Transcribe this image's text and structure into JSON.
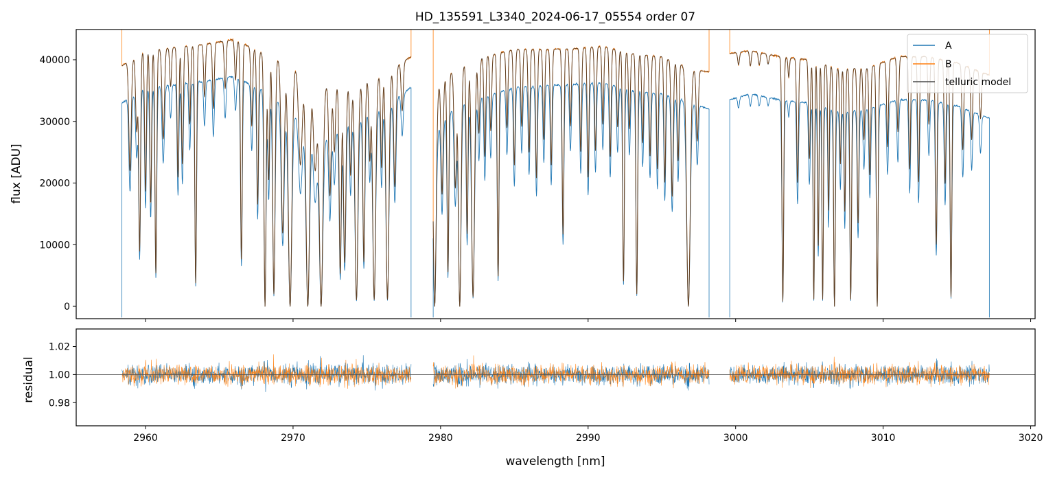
{
  "chart_data": [
    {
      "type": "line",
      "title": "HD_135591_L3340_2024-06-17_05554  order 07",
      "xlabel": "",
      "ylabel": "flux [ADU]",
      "xlim": [
        2955.3,
        3020.3
      ],
      "ylim": [
        -2000,
        44900
      ],
      "yticks": [
        0,
        10000,
        20000,
        30000,
        40000
      ],
      "ytick_labels": [
        "0",
        "10000",
        "20000",
        "30000",
        "40000"
      ],
      "xticks": [
        2960,
        2970,
        2980,
        2990,
        3000,
        3010,
        3020
      ],
      "show_xtick_labels": false,
      "grid": false,
      "legend": {
        "position": "top-right",
        "entries": [
          "A",
          "B",
          "telluric model"
        ]
      },
      "segments": [
        {
          "x0": 2958.4,
          "x1": 2978.0
        },
        {
          "x0": 2979.5,
          "x1": 2998.2
        },
        {
          "x0": 2999.6,
          "x1": 3017.2
        }
      ],
      "continuum_B": [
        [
          2958.4,
          39000
        ],
        [
          2960.0,
          41500
        ],
        [
          2962.0,
          42000
        ],
        [
          2964.0,
          42500
        ],
        [
          2966.0,
          43300
        ],
        [
          2968.0,
          41000
        ],
        [
          2970.0,
          39000
        ],
        [
          2972.0,
          36000
        ],
        [
          2974.0,
          35500
        ],
        [
          2976.0,
          37500
        ],
        [
          2978.0,
          40500
        ],
        [
          2979.5,
          35000
        ],
        [
          2981.0,
          38500
        ],
        [
          2983.0,
          40500
        ],
        [
          2985.0,
          41700
        ],
        [
          2987.0,
          41700
        ],
        [
          2989.0,
          41800
        ],
        [
          2991.0,
          42200
        ],
        [
          2993.0,
          41000
        ],
        [
          2995.0,
          40500
        ],
        [
          2997.0,
          38500
        ],
        [
          2998.2,
          38000
        ],
        [
          2999.6,
          41000
        ],
        [
          3001.0,
          41500
        ],
        [
          3003.0,
          40500
        ],
        [
          3005.0,
          40000
        ],
        [
          3007.0,
          38500
        ],
        [
          3009.0,
          38700
        ],
        [
          3011.0,
          40500
        ],
        [
          3013.0,
          40500
        ],
        [
          3015.0,
          39500
        ],
        [
          3017.2,
          37500
        ]
      ],
      "continuum_A": [
        [
          2958.4,
          33000
        ],
        [
          2960.0,
          35500
        ],
        [
          2962.0,
          36000
        ],
        [
          2964.0,
          36500
        ],
        [
          2966.0,
          37300
        ],
        [
          2968.0,
          35000
        ],
        [
          2970.0,
          31500
        ],
        [
          2972.0,
          27000
        ],
        [
          2974.0,
          30000
        ],
        [
          2976.0,
          32000
        ],
        [
          2978.0,
          35500
        ],
        [
          2979.5,
          28000
        ],
        [
          2981.0,
          32500
        ],
        [
          2983.0,
          34000
        ],
        [
          2985.0,
          35500
        ],
        [
          2987.0,
          35800
        ],
        [
          2989.0,
          36000
        ],
        [
          2991.0,
          36300
        ],
        [
          2993.0,
          35000
        ],
        [
          2995.0,
          34500
        ],
        [
          2997.0,
          33000
        ],
        [
          2998.2,
          32000
        ],
        [
          2999.6,
          33500
        ],
        [
          3001.0,
          34500
        ],
        [
          3003.0,
          33500
        ],
        [
          3005.0,
          33000
        ],
        [
          3007.0,
          31500
        ],
        [
          3009.0,
          32000
        ],
        [
          3011.0,
          33500
        ],
        [
          3013.0,
          33500
        ],
        [
          3015.0,
          32500
        ],
        [
          3017.2,
          30500
        ]
      ],
      "absorption_lines": [
        [
          2958.95,
          0.45,
          0.08
        ],
        [
          2959.4,
          0.3,
          0.07
        ],
        [
          2959.6,
          0.78,
          0.06
        ],
        [
          2960.0,
          0.55,
          0.06
        ],
        [
          2960.35,
          0.6,
          0.06
        ],
        [
          2960.7,
          0.87,
          0.06
        ],
        [
          2961.2,
          0.35,
          0.08
        ],
        [
          2961.7,
          0.15,
          0.06
        ],
        [
          2962.2,
          0.5,
          0.06
        ],
        [
          2962.5,
          0.45,
          0.06
        ],
        [
          2963.0,
          0.3,
          0.06
        ],
        [
          2963.4,
          0.91,
          0.06
        ],
        [
          2964.0,
          0.2,
          0.06
        ],
        [
          2964.6,
          0.25,
          0.06
        ],
        [
          2965.4,
          0.18,
          0.06
        ],
        [
          2966.1,
          0.15,
          0.06
        ],
        [
          2966.5,
          0.82,
          0.06
        ],
        [
          2967.2,
          0.3,
          0.06
        ],
        [
          2967.6,
          0.6,
          0.06
        ],
        [
          2968.1,
          1.0,
          0.07
        ],
        [
          2968.35,
          0.5,
          0.06
        ],
        [
          2968.7,
          0.95,
          0.08
        ],
        [
          2969.3,
          0.7,
          0.1
        ],
        [
          2969.8,
          1.0,
          0.12
        ],
        [
          2970.5,
          0.4,
          0.12
        ],
        [
          2971.0,
          1.0,
          0.12
        ],
        [
          2971.5,
          0.4,
          0.12
        ],
        [
          2971.9,
          1.0,
          0.12
        ],
        [
          2972.5,
          0.5,
          0.08
        ],
        [
          2972.8,
          0.3,
          0.07
        ],
        [
          2973.2,
          0.85,
          0.07
        ],
        [
          2973.5,
          0.8,
          0.08
        ],
        [
          2973.9,
          0.4,
          0.06
        ],
        [
          2974.3,
          0.97,
          0.1
        ],
        [
          2974.8,
          0.8,
          0.07
        ],
        [
          2975.2,
          0.35,
          0.06
        ],
        [
          2975.5,
          0.97,
          0.1
        ],
        [
          2976.0,
          0.4,
          0.06
        ],
        [
          2976.4,
          0.97,
          0.1
        ],
        [
          2976.9,
          0.5,
          0.08
        ],
        [
          2977.4,
          0.2,
          0.07
        ],
        [
          2979.6,
          1.0,
          0.1
        ],
        [
          2980.1,
          0.5,
          0.07
        ],
        [
          2980.5,
          0.85,
          0.06
        ],
        [
          2981.0,
          0.5,
          0.08
        ],
        [
          2981.3,
          1.0,
          0.09
        ],
        [
          2981.8,
          0.7,
          0.06
        ],
        [
          2982.2,
          0.96,
          0.1
        ],
        [
          2982.6,
          0.3,
          0.06
        ],
        [
          2983.0,
          0.4,
          0.06
        ],
        [
          2983.4,
          0.3,
          0.06
        ],
        [
          2983.9,
          0.88,
          0.06
        ],
        [
          2984.5,
          0.3,
          0.06
        ],
        [
          2985.0,
          0.45,
          0.06
        ],
        [
          2985.5,
          0.3,
          0.06
        ],
        [
          2986.0,
          0.4,
          0.06
        ],
        [
          2986.5,
          0.5,
          0.06
        ],
        [
          2987.0,
          0.35,
          0.06
        ],
        [
          2987.5,
          0.45,
          0.06
        ],
        [
          2988.3,
          0.72,
          0.06
        ],
        [
          2988.8,
          0.3,
          0.06
        ],
        [
          2989.5,
          0.4,
          0.06
        ],
        [
          2990.0,
          0.5,
          0.06
        ],
        [
          2990.5,
          0.4,
          0.06
        ],
        [
          2991.0,
          0.3,
          0.06
        ],
        [
          2991.5,
          0.42,
          0.06
        ],
        [
          2992.0,
          0.3,
          0.06
        ],
        [
          2992.4,
          0.9,
          0.06
        ],
        [
          2992.8,
          0.3,
          0.06
        ],
        [
          2993.3,
          0.95,
          0.06
        ],
        [
          2993.7,
          0.35,
          0.06
        ],
        [
          2994.2,
          0.4,
          0.06
        ],
        [
          2994.7,
          0.45,
          0.06
        ],
        [
          2995.2,
          0.5,
          0.06
        ],
        [
          2995.7,
          0.55,
          0.07
        ],
        [
          2996.1,
          0.4,
          0.06
        ],
        [
          2996.8,
          1.0,
          0.12
        ],
        [
          2997.4,
          0.3,
          0.07
        ],
        [
          3000.2,
          0.05,
          0.06
        ],
        [
          3001.0,
          0.06,
          0.06
        ],
        [
          3001.6,
          0.05,
          0.06
        ],
        [
          3002.2,
          0.04,
          0.06
        ],
        [
          3003.2,
          0.98,
          0.06
        ],
        [
          3003.6,
          0.08,
          0.05
        ],
        [
          3004.2,
          0.5,
          0.06
        ],
        [
          3005.0,
          0.4,
          0.06
        ],
        [
          3005.3,
          0.97,
          0.05
        ],
        [
          3005.6,
          0.75,
          0.05
        ],
        [
          3005.9,
          0.97,
          0.05
        ],
        [
          3006.3,
          0.6,
          0.05
        ],
        [
          3006.7,
          1.0,
          0.06
        ],
        [
          3007.1,
          0.4,
          0.05
        ],
        [
          3007.4,
          0.6,
          0.05
        ],
        [
          3007.8,
          0.97,
          0.06
        ],
        [
          3008.3,
          0.65,
          0.06
        ],
        [
          3008.7,
          0.3,
          0.06
        ],
        [
          3009.1,
          0.45,
          0.06
        ],
        [
          3009.6,
          1.0,
          0.06
        ],
        [
          3010.3,
          0.35,
          0.06
        ],
        [
          3011.0,
          0.3,
          0.06
        ],
        [
          3011.8,
          0.45,
          0.06
        ],
        [
          3012.4,
          0.5,
          0.06
        ],
        [
          3013.1,
          0.27,
          0.06
        ],
        [
          3013.6,
          0.75,
          0.06
        ],
        [
          3014.2,
          0.5,
          0.06
        ],
        [
          3014.6,
          0.96,
          0.06
        ],
        [
          3015.4,
          0.35,
          0.06
        ],
        [
          3016.0,
          0.3,
          0.06
        ],
        [
          3016.6,
          0.2,
          0.06
        ]
      ],
      "series": [
        {
          "name": "A",
          "color": "#1f77b4"
        },
        {
          "name": "B",
          "color": "#ff7f0e"
        },
        {
          "name": "telluric model",
          "color": "#3a3a3a"
        }
      ]
    },
    {
      "type": "line",
      "title": "",
      "xlabel": "wavelength [nm]",
      "ylabel": "residual",
      "xlim": [
        2955.3,
        3020.3
      ],
      "ylim": [
        0.9635,
        1.0325
      ],
      "yticks": [
        0.98,
        1.0,
        1.02
      ],
      "ytick_labels": [
        "0.98",
        "1.00",
        "1.02"
      ],
      "xticks": [
        2960,
        2970,
        2980,
        2990,
        3000,
        3010,
        3020
      ],
      "xtick_labels": [
        "2960",
        "2970",
        "2980",
        "2990",
        "3000",
        "3010",
        "3020"
      ],
      "reference_line": 1.0,
      "grid": false,
      "series": [
        {
          "name": "A",
          "color": "#1f77b4"
        },
        {
          "name": "B",
          "color": "#ff7f0e"
        }
      ]
    }
  ]
}
